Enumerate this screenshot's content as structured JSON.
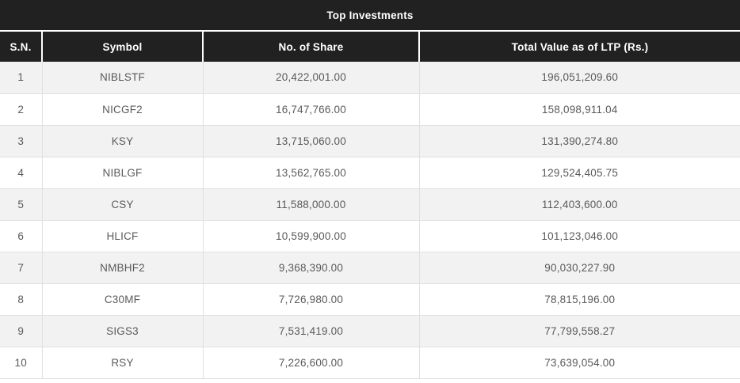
{
  "widget": {
    "title": "Top Investments"
  },
  "colors": {
    "header_bg": "#212121",
    "header_text": "#ffffff",
    "row_alt_bg": "#f2f2f2",
    "row_bg": "#ffffff",
    "body_text": "#5a5a5a",
    "border": "#e0e0e0",
    "header_separator": "#ffffff"
  },
  "chart_data": {
    "type": "table",
    "title": "Top Investments",
    "columns": [
      "S.N.",
      "Symbol",
      "No. of Share",
      "Total Value as of LTP (Rs.)"
    ],
    "rows": [
      {
        "sn": "1",
        "symbol": "NIBLSTF",
        "shares": "20,422,001.00",
        "value": "196,051,209.60"
      },
      {
        "sn": "2",
        "symbol": "NICGF2",
        "shares": "16,747,766.00",
        "value": "158,098,911.04"
      },
      {
        "sn": "3",
        "symbol": "KSY",
        "shares": "13,715,060.00",
        "value": "131,390,274.80"
      },
      {
        "sn": "4",
        "symbol": "NIBLGF",
        "shares": "13,562,765.00",
        "value": "129,524,405.75"
      },
      {
        "sn": "5",
        "symbol": "CSY",
        "shares": "11,588,000.00",
        "value": "112,403,600.00"
      },
      {
        "sn": "6",
        "symbol": "HLICF",
        "shares": "10,599,900.00",
        "value": "101,123,046.00"
      },
      {
        "sn": "7",
        "symbol": "NMBHF2",
        "shares": "9,368,390.00",
        "value": "90,030,227.90"
      },
      {
        "sn": "8",
        "symbol": "C30MF",
        "shares": "7,726,980.00",
        "value": "78,815,196.00"
      },
      {
        "sn": "9",
        "symbol": "SIGS3",
        "shares": "7,531,419.00",
        "value": "77,799,558.27"
      },
      {
        "sn": "10",
        "symbol": "RSY",
        "shares": "7,226,600.00",
        "value": "73,639,054.00"
      }
    ]
  }
}
